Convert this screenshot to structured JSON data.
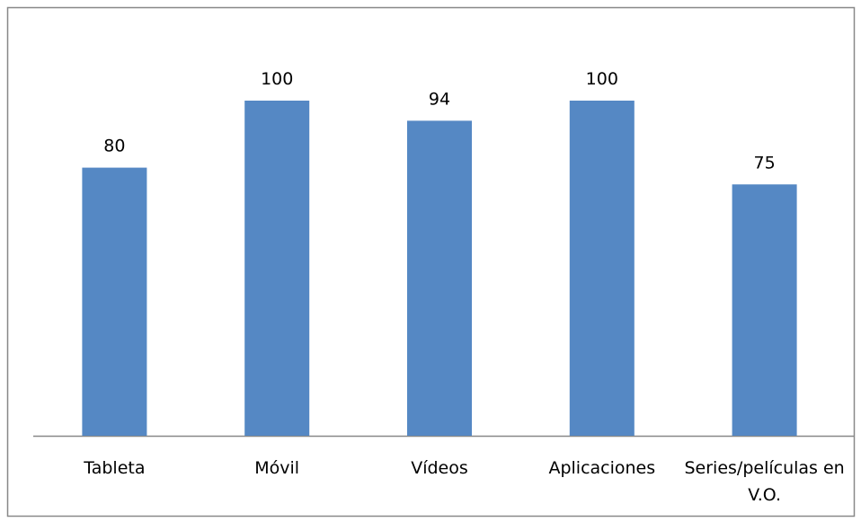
{
  "chart_data": {
    "type": "bar",
    "categories": [
      "Tableta",
      "Móvil",
      "Vídeos",
      "Aplicaciones",
      "Series/películas en V.O."
    ],
    "values": [
      80,
      100,
      94,
      100,
      75
    ],
    "color": "#5588c4"
  }
}
